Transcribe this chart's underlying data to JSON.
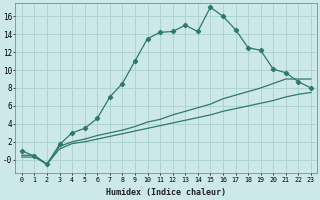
{
  "xlabel": "Humidex (Indice chaleur)",
  "bg_color": "#cce8e8",
  "grid_color": "#b0d4d4",
  "line_color": "#2d7a6a",
  "xlim": [
    -0.5,
    23.5
  ],
  "ylim": [
    -1.5,
    17.5
  ],
  "xticks": [
    0,
    1,
    2,
    3,
    4,
    5,
    6,
    7,
    8,
    9,
    10,
    11,
    12,
    13,
    14,
    15,
    16,
    17,
    18,
    19,
    20,
    21,
    22,
    23
  ],
  "yticks": [
    0,
    2,
    4,
    6,
    8,
    10,
    12,
    14,
    16
  ],
  "ytick_labels": [
    "-0",
    "2",
    "4",
    "6",
    "8",
    "10",
    "12",
    "14",
    "16"
  ],
  "curve1_x": [
    0,
    1,
    2,
    3,
    4,
    5,
    6,
    7,
    8,
    9,
    10,
    11,
    12,
    13,
    14,
    15,
    16,
    17,
    18,
    19,
    20,
    21,
    22,
    23
  ],
  "curve1_y": [
    1.0,
    0.4,
    -0.5,
    1.7,
    3.0,
    3.5,
    4.6,
    7.0,
    8.5,
    11.0,
    13.5,
    14.2,
    14.3,
    15.0,
    14.3,
    17.0,
    16.0,
    14.5,
    12.5,
    12.2,
    10.1,
    9.7,
    8.7,
    8.0
  ],
  "curve2_x": [
    0,
    1,
    2,
    3,
    4,
    5,
    6,
    7,
    8,
    9,
    10,
    11,
    12,
    13,
    14,
    15,
    16,
    17,
    18,
    19,
    20,
    21,
    22,
    23
  ],
  "curve2_y": [
    0.5,
    0.5,
    -0.5,
    1.5,
    2.0,
    2.3,
    2.7,
    3.0,
    3.3,
    3.7,
    4.2,
    4.5,
    5.0,
    5.4,
    5.8,
    6.2,
    6.8,
    7.2,
    7.6,
    8.0,
    8.5,
    9.0,
    9.0,
    9.0
  ],
  "curve3_x": [
    0,
    1,
    2,
    3,
    4,
    5,
    6,
    7,
    8,
    9,
    10,
    11,
    12,
    13,
    14,
    15,
    16,
    17,
    18,
    19,
    20,
    21,
    22,
    23
  ],
  "curve3_y": [
    0.3,
    0.3,
    -0.5,
    1.2,
    1.8,
    2.0,
    2.3,
    2.6,
    2.9,
    3.2,
    3.5,
    3.8,
    4.1,
    4.4,
    4.7,
    5.0,
    5.4,
    5.7,
    6.0,
    6.3,
    6.6,
    7.0,
    7.3,
    7.5
  ]
}
